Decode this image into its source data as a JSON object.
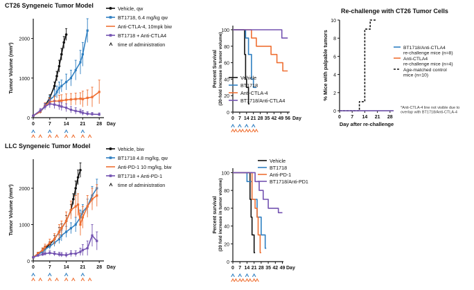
{
  "colors": {
    "black": "#111111",
    "blue": "#2f7fc1",
    "orange": "#ef6f32",
    "purple": "#7352b1"
  },
  "chart_data": [
    {
      "id": "ct26_volume",
      "type": "line",
      "title": "CT26 Syngeneic Tumor Model",
      "ylabel": "Tumor Volume (mm³)",
      "xlabel": "Day",
      "xlim": [
        0,
        30
      ],
      "ylim": [
        0,
        2500
      ],
      "xticks": [
        0,
        7,
        14,
        21,
        28
      ],
      "yticks": [
        0,
        1000,
        2000
      ],
      "dosing_rows": [
        {
          "color": "#2f7fc1",
          "days": [
            0,
            7,
            14,
            21
          ]
        },
        {
          "color": "#ef6f32",
          "days": [
            0,
            3,
            7,
            10,
            14,
            17,
            21,
            24
          ]
        }
      ],
      "legend": [
        {
          "label": "Vehicle, qw",
          "color": "#111111",
          "marker": "circle"
        },
        {
          "label": "BT1718, 6.4 mg/kg qw",
          "color": "#2f7fc1",
          "marker": "square"
        },
        {
          "label": "Anti-CTLA-4, 10mpk biw",
          "color": "#ef6f32",
          "marker": "line"
        },
        {
          "label": "BT1718 + Anti-CTLA4",
          "color": "#7352b1",
          "marker": "square"
        },
        {
          "label": "time of administration",
          "marker": "caret"
        }
      ],
      "series": [
        {
          "name": "Vehicle, qw",
          "color": "#111111",
          "x": [
            0,
            3,
            5,
            7,
            9,
            10,
            11,
            12,
            13,
            14
          ],
          "y": [
            50,
            150,
            300,
            500,
            800,
            1050,
            1300,
            1600,
            1900,
            2100
          ],
          "err": [
            20,
            40,
            60,
            80,
            100,
            120,
            150,
            150,
            150,
            150
          ]
        },
        {
          "name": "BT1718, 6.4 mg/kg qw",
          "color": "#2f7fc1",
          "x": [
            0,
            3,
            5,
            7,
            9,
            10,
            11,
            12,
            14,
            16,
            18,
            20,
            21,
            23
          ],
          "y": [
            50,
            150,
            280,
            450,
            550,
            650,
            750,
            800,
            900,
            1000,
            1200,
            1400,
            1600,
            2200
          ],
          "err": [
            20,
            40,
            60,
            100,
            150,
            150,
            150,
            150,
            200,
            200,
            250,
            300,
            300,
            300
          ]
        },
        {
          "name": "Anti-CTLA-4, 10mpk biw",
          "color": "#ef6f32",
          "x": [
            0,
            3,
            5,
            7,
            9,
            11,
            12,
            14,
            16,
            18,
            20,
            21,
            23,
            25,
            28
          ],
          "y": [
            50,
            150,
            300,
            400,
            420,
            420,
            430,
            450,
            460,
            470,
            480,
            470,
            500,
            520,
            650
          ],
          "err": [
            20,
            40,
            80,
            100,
            120,
            150,
            150,
            150,
            150,
            150,
            150,
            200,
            200,
            250,
            300
          ]
        },
        {
          "name": "BT1718 + Anti-CTLA4",
          "color": "#7352b1",
          "x": [
            0,
            3,
            5,
            7,
            9,
            11,
            12,
            14,
            16,
            18,
            20,
            21,
            23,
            25,
            28
          ],
          "y": [
            50,
            180,
            280,
            350,
            330,
            300,
            280,
            250,
            200,
            170,
            150,
            120,
            100,
            90,
            80
          ],
          "err": [
            20,
            50,
            80,
            100,
            100,
            100,
            100,
            100,
            80,
            80,
            60,
            60,
            50,
            40,
            40
          ]
        }
      ]
    },
    {
      "id": "ct26_survival",
      "type": "line",
      "title": "",
      "ylabel": "Percent Survival",
      "ylabel2": "(20-fold increase in tumor volume)",
      "xlabel": "Day",
      "xlim": [
        0,
        58
      ],
      "ylim": [
        0,
        105
      ],
      "xticks": [
        0,
        7,
        14,
        21,
        28,
        35,
        42,
        49,
        56
      ],
      "yticks": [
        0,
        20,
        40,
        60,
        80,
        100
      ],
      "dosing_rows": [
        {
          "color": "#2f7fc1",
          "days": [
            0,
            7,
            14,
            21
          ]
        },
        {
          "color": "#ef6f32",
          "days": [
            0,
            3,
            7,
            10,
            14,
            17,
            21,
            24
          ]
        }
      ],
      "legend": [
        {
          "label": "Vehicle",
          "color": "#111111"
        },
        {
          "label": "BT1718",
          "color": "#2f7fc1"
        },
        {
          "label": "Anti-CTLA-4",
          "color": "#ef6f32"
        },
        {
          "label": "BT1718/Anti-CTLA4",
          "color": "#7352b1"
        }
      ],
      "series": [
        {
          "name": "Vehicle",
          "color": "#111111",
          "x": [
            0,
            12,
            12,
            13,
            13,
            14,
            14,
            16,
            16,
            17
          ],
          "y": [
            100,
            100,
            70,
            70,
            40,
            40,
            30,
            30,
            10,
            10
          ]
        },
        {
          "name": "BT1718",
          "color": "#2f7fc1",
          "x": [
            0,
            13,
            13,
            16,
            16,
            19,
            19,
            21,
            21,
            24
          ],
          "y": [
            100,
            100,
            90,
            90,
            70,
            70,
            40,
            40,
            30,
            30
          ]
        },
        {
          "name": "Anti-CTLA-4",
          "color": "#ef6f32",
          "x": [
            0,
            19,
            19,
            24,
            24,
            39,
            39,
            45,
            45,
            51,
            51,
            56
          ],
          "y": [
            100,
            100,
            90,
            90,
            80,
            80,
            70,
            70,
            60,
            60,
            50,
            50
          ]
        },
        {
          "name": "BT1718/Anti-CTLA4",
          "color": "#7352b1",
          "x": [
            0,
            50,
            50,
            56
          ],
          "y": [
            100,
            100,
            90,
            90
          ]
        }
      ]
    },
    {
      "id": "ct26_rechallenge",
      "type": "line",
      "title": "Re-challenge with CT26 Tumor Cells",
      "ylabel": "% Mice with palpable tumors",
      "xlabel": "Day after re-challenge",
      "xlim": [
        0,
        30
      ],
      "ylim": [
        0,
        10
      ],
      "xticks": [
        0,
        7,
        14,
        21,
        28
      ],
      "yticks": [
        0,
        2,
        4,
        6,
        8,
        10
      ],
      "legend": [
        {
          "label": "BT1718/Anti-CTLA4 re-challenge mice (n=8)",
          "color": "#2f7fc1"
        },
        {
          "label": "Anti-CTLA4 re-challenge mice (n=4)",
          "color": "#ef6f32"
        },
        {
          "label": "Age-matched control mice (n=10)",
          "color": "#111111",
          "dashed": true
        }
      ],
      "note": "*Anti-CTLA-4 line not visible due to overlap with BT1718/Anti-CTLA-4",
      "series": [
        {
          "name": "Age-matched control mice (n=10)",
          "color": "#111111",
          "dashed": true,
          "x": [
            0,
            11,
            11,
            14,
            14,
            17,
            17,
            20
          ],
          "y": [
            0,
            0,
            1,
            1,
            9,
            9,
            10,
            10
          ]
        },
        {
          "name": "BT1718/Anti-CTLA4 re-challenge mice (n=8)",
          "color": "#7352b1",
          "x": [
            0,
            30
          ],
          "y": [
            0,
            0
          ]
        }
      ]
    },
    {
      "id": "llc_volume",
      "type": "line",
      "title": "LLC Syngeneic Tumor Model",
      "ylabel": "Tumor Volume (mm³)",
      "xlabel": "Day",
      "xlim": [
        0,
        30
      ],
      "ylim": [
        0,
        2800
      ],
      "xticks": [
        0,
        7,
        14,
        21,
        28
      ],
      "yticks": [
        0,
        1000,
        2000
      ],
      "dosing_rows": [
        {
          "color": "#2f7fc1",
          "days": [
            0,
            7,
            14,
            21
          ]
        },
        {
          "color": "#ef6f32",
          "days": [
            0,
            3,
            7,
            10,
            14,
            17,
            21,
            24
          ]
        }
      ],
      "legend": [
        {
          "label": "Vehicle, biw",
          "color": "#111111",
          "marker": "circle"
        },
        {
          "label": "BT1718 4.8 mg/kg, qw",
          "color": "#2f7fc1",
          "marker": "square"
        },
        {
          "label": "Anti-PD-1 10 mg/kg, biw",
          "color": "#ef6f32",
          "marker": "line"
        },
        {
          "label": "BT1718 + Anti-PD-1",
          "color": "#7352b1",
          "marker": "square"
        },
        {
          "label": "time of administration",
          "marker": "caret"
        }
      ],
      "series": [
        {
          "name": "Vehicle, biw",
          "color": "#111111",
          "x": [
            0,
            2,
            4,
            5,
            7,
            9,
            11,
            12,
            14,
            16,
            17,
            18,
            19,
            20
          ],
          "y": [
            100,
            200,
            300,
            350,
            450,
            600,
            800,
            900,
            1100,
            1400,
            1700,
            2000,
            2300,
            2500
          ],
          "err": [
            20,
            40,
            50,
            60,
            80,
            100,
            120,
            120,
            150,
            150,
            150,
            200,
            200,
            200
          ]
        },
        {
          "name": "BT1718 4.8 mg/kg, qw",
          "color": "#2f7fc1",
          "x": [
            0,
            2,
            4,
            5,
            7,
            9,
            11,
            12,
            14,
            16,
            18,
            20,
            21,
            23,
            25,
            27
          ],
          "y": [
            100,
            180,
            250,
            320,
            400,
            500,
            600,
            700,
            800,
            900,
            1000,
            1200,
            1350,
            1500,
            1800,
            2000
          ],
          "err": [
            20,
            30,
            50,
            60,
            80,
            100,
            120,
            150,
            150,
            150,
            200,
            200,
            200,
            200,
            250,
            250
          ]
        },
        {
          "name": "Anti-PD-1 10 mg/kg, biw",
          "color": "#ef6f32",
          "x": [
            0,
            2,
            4,
            5,
            7,
            9,
            11,
            12,
            14,
            16,
            18,
            19,
            20,
            21,
            23,
            25,
            27
          ],
          "y": [
            100,
            200,
            300,
            380,
            500,
            600,
            800,
            900,
            1100,
            1400,
            1500,
            1550,
            1000,
            1200,
            1500,
            1700,
            1800
          ],
          "err": [
            20,
            40,
            60,
            80,
            100,
            150,
            200,
            200,
            250,
            250,
            300,
            300,
            300,
            300,
            300,
            300,
            300
          ]
        },
        {
          "name": "BT1718 + Anti-PD-1",
          "color": "#7352b1",
          "x": [
            0,
            2,
            4,
            5,
            7,
            9,
            11,
            12,
            14,
            16,
            18,
            20,
            21,
            23,
            25,
            27
          ],
          "y": [
            100,
            150,
            180,
            200,
            220,
            200,
            180,
            170,
            160,
            200,
            200,
            250,
            300,
            350,
            700,
            550
          ],
          "err": [
            20,
            30,
            40,
            50,
            60,
            60,
            60,
            60,
            60,
            80,
            80,
            100,
            150,
            200,
            300,
            250
          ]
        }
      ]
    },
    {
      "id": "llc_survival",
      "type": "line",
      "title": "",
      "ylabel": "Percent survival",
      "ylabel2": "(20 fold increase in tumor volume)",
      "xlabel": "Day",
      "xlim": [
        0,
        50
      ],
      "ylim": [
        0,
        105
      ],
      "xticks": [
        0,
        7,
        14,
        21,
        28,
        35,
        42,
        49
      ],
      "yticks": [
        0,
        20,
        40,
        60,
        80,
        100
      ],
      "dosing_rows": [
        {
          "color": "#2f7fc1",
          "days": [
            0,
            7,
            14,
            21
          ]
        },
        {
          "color": "#ef6f32",
          "days": [
            0,
            3,
            7,
            10,
            14,
            17,
            21,
            24
          ]
        }
      ],
      "legend": [
        {
          "label": "Vehicle",
          "color": "#111111"
        },
        {
          "label": "BT1718",
          "color": "#2f7fc1"
        },
        {
          "label": "Anti-PD-1",
          "color": "#ef6f32"
        },
        {
          "label": "BT1718/Anti-PD1",
          "color": "#7352b1"
        }
      ],
      "series": [
        {
          "name": "Vehicle",
          "color": "#111111",
          "x": [
            0,
            17,
            17,
            18,
            18,
            19,
            19,
            21,
            21,
            22
          ],
          "y": [
            100,
            100,
            70,
            70,
            50,
            50,
            30,
            30,
            10,
            10
          ]
        },
        {
          "name": "BT1718",
          "color": "#2f7fc1",
          "x": [
            0,
            14,
            14,
            19,
            19,
            24,
            24,
            28,
            28,
            32,
            32,
            33
          ],
          "y": [
            100,
            100,
            90,
            90,
            70,
            70,
            50,
            50,
            30,
            30,
            15,
            15
          ]
        },
        {
          "name": "Anti-PD-1",
          "color": "#ef6f32",
          "x": [
            0,
            19,
            19,
            22,
            22,
            24,
            24,
            25,
            25,
            27,
            27,
            28
          ],
          "y": [
            100,
            100,
            70,
            70,
            60,
            60,
            50,
            50,
            30,
            30,
            10,
            10
          ]
        },
        {
          "name": "BT1718/Anti-PD1",
          "color": "#7352b1",
          "x": [
            0,
            22,
            22,
            26,
            26,
            30,
            30,
            35,
            35,
            45,
            45,
            49
          ],
          "y": [
            100,
            100,
            90,
            90,
            80,
            80,
            70,
            70,
            60,
            60,
            55,
            55
          ]
        }
      ]
    }
  ]
}
